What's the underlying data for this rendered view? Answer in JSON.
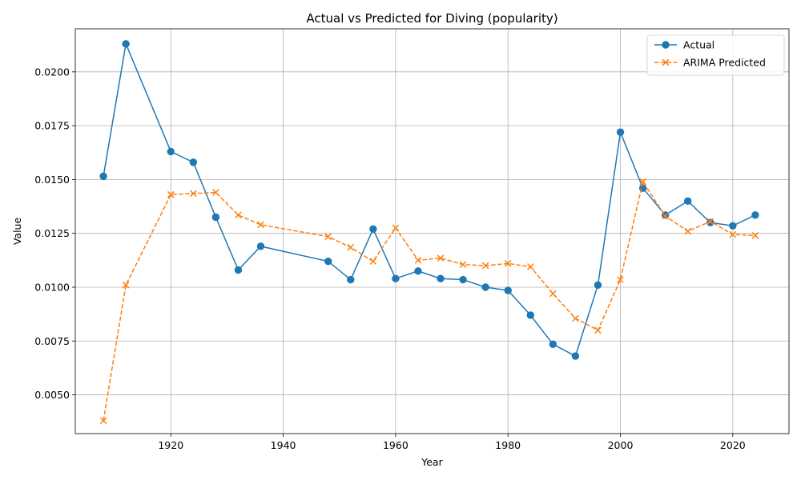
{
  "chart_data": {
    "type": "line",
    "title": "Actual vs Predicted for Diving (popularity)",
    "xlabel": "Year",
    "ylabel": "Value",
    "xlim": [
      1903,
      2030
    ],
    "ylim": [
      0.0032,
      0.022
    ],
    "xticks": [
      1920,
      1940,
      1960,
      1980,
      2000,
      2020
    ],
    "xtick_labels": [
      "1920",
      "1940",
      "1960",
      "1980",
      "2000",
      "2020"
    ],
    "yticks": [
      0.005,
      0.0075,
      0.01,
      0.0125,
      0.015,
      0.0175,
      0.02
    ],
    "ytick_labels": [
      "0.0050",
      "0.0075",
      "0.0100",
      "0.0125",
      "0.0150",
      "0.0175",
      "0.0200"
    ],
    "grid": true,
    "legend_position": "top-right",
    "series": [
      {
        "name": "Actual",
        "color": "#1f77b4",
        "line_style": "solid",
        "marker": "circle",
        "x": [
          1908,
          1912,
          1920,
          1924,
          1928,
          1932,
          1936,
          1948,
          1952,
          1956,
          1960,
          1964,
          1968,
          1972,
          1976,
          1980,
          1984,
          1988,
          1992,
          1996,
          2000,
          2004,
          2008,
          2012,
          2016,
          2020,
          2024
        ],
        "values": [
          0.01515,
          0.0213,
          0.0163,
          0.0158,
          0.01325,
          0.0108,
          0.0119,
          0.0112,
          0.01035,
          0.0127,
          0.0104,
          0.01075,
          0.0104,
          0.01035,
          0.01,
          0.00985,
          0.0087,
          0.00735,
          0.0068,
          0.0101,
          0.0172,
          0.0146,
          0.01335,
          0.014,
          0.013,
          0.01285,
          0.01335
        ]
      },
      {
        "name": "ARIMA Predicted",
        "color": "#ff7f0e",
        "line_style": "dashed",
        "marker": "x",
        "x": [
          1908,
          1912,
          1920,
          1924,
          1928,
          1932,
          1936,
          1948,
          1952,
          1956,
          1960,
          1964,
          1968,
          1972,
          1976,
          1980,
          1984,
          1988,
          1992,
          1996,
          2000,
          2004,
          2008,
          2012,
          2016,
          2020,
          2024
        ],
        "values": [
          0.0038,
          0.0101,
          0.0143,
          0.01435,
          0.0144,
          0.01335,
          0.0129,
          0.01235,
          0.01185,
          0.0112,
          0.01275,
          0.01125,
          0.01135,
          0.01105,
          0.011,
          0.0111,
          0.01095,
          0.0097,
          0.00855,
          0.008,
          0.01035,
          0.0149,
          0.0133,
          0.0126,
          0.01305,
          0.01245,
          0.0124
        ]
      }
    ]
  }
}
